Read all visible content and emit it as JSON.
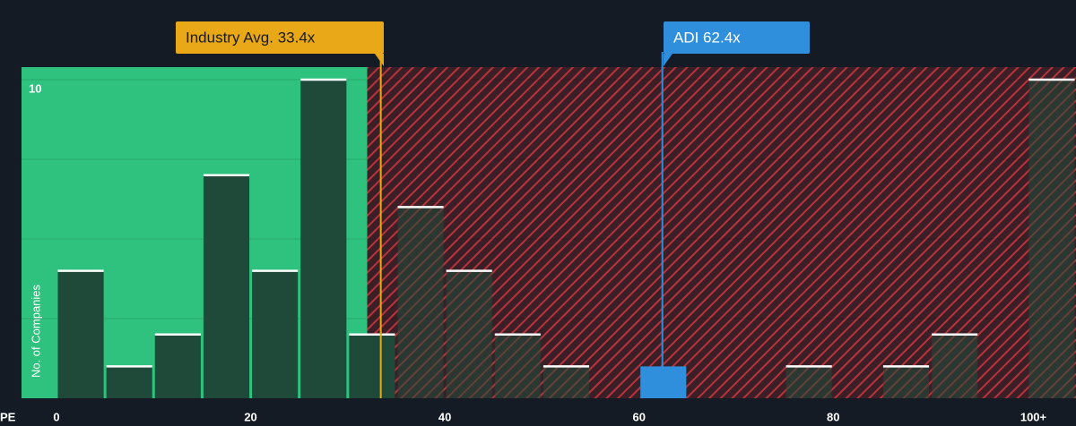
{
  "chart_data": {
    "type": "histogram",
    "x_label": "PE",
    "y_label": "No. of Companies",
    "bins": [
      0,
      5,
      10,
      15,
      20,
      25,
      30,
      35,
      40,
      45,
      50,
      55,
      60,
      65,
      70,
      75,
      80,
      85,
      90,
      95,
      100,
      105
    ],
    "values": [
      4,
      1,
      2,
      7,
      4,
      10,
      2,
      6,
      4,
      2,
      1,
      0,
      1,
      0,
      0,
      1,
      0,
      1,
      2,
      0,
      10
    ],
    "xlim": [
      -3.6,
      105
    ],
    "ylim": [
      0,
      10
    ],
    "xticks": [
      0,
      20,
      40,
      60,
      80,
      {
        "value": 100,
        "label": "100+"
      }
    ],
    "yticks": [
      10
    ],
    "ygrid": [
      2.5,
      5,
      7.5,
      10
    ],
    "shaded_split": 32,
    "bar_color": "#1f4a3a",
    "highlight_color": "#2f8fdc",
    "annotations": [
      {
        "text": "Industry Avg. 33.4x",
        "value": 33.4,
        "color": "#e8a817"
      },
      {
        "text": "ADI 62.4x",
        "value": 62.4,
        "color": "#2f8fdc"
      }
    ]
  }
}
